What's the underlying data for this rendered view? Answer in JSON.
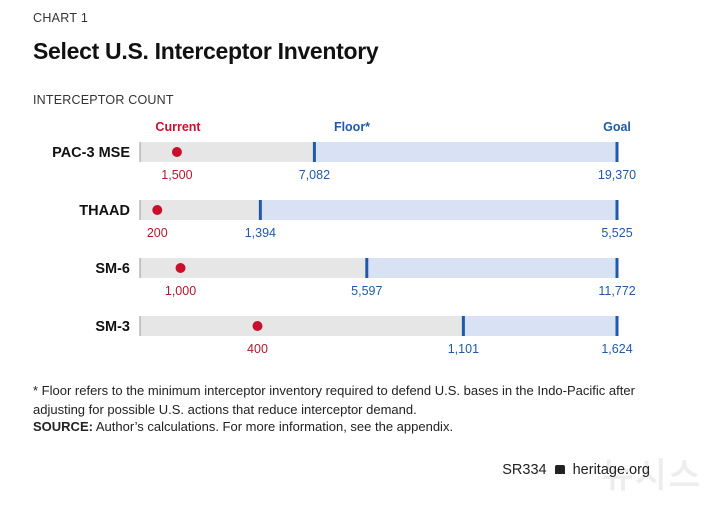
{
  "header": {
    "kicker": "CHART 1",
    "title": "Select U.S. Interceptor Inventory",
    "ylabel": "INTERCEPTOR COUNT"
  },
  "footer": {
    "footnote": "* Floor refers to the minimum interceptor inventory required to defend U.S. bases in the Indo-Pacific after adjusting for possible U.S. actions that reduce interceptor demand.",
    "source_label": "SOURCE:",
    "source_text": " Author’s calculations. For more information, see the appendix.",
    "report_id": "SR334",
    "site": "heritage.org",
    "watermark": "뉴시스"
  },
  "colors": {
    "current": "#c8102e",
    "floor_goal": "#1f5aa8",
    "bar_gray": "#e6e6e6",
    "bar_blue": "#d9e1f4",
    "current_label": "#b01a2e"
  },
  "chart_data": {
    "type": "bar",
    "legend": [
      "Current",
      "Floor*",
      "Goal"
    ],
    "categories": [
      "PAC-3 MSE",
      "THAAD",
      "SM-6",
      "SM-3"
    ],
    "series": [
      {
        "name": "Current",
        "values": [
          1500,
          200,
          1000,
          400
        ],
        "labels": [
          "1,500",
          "200",
          "1,000",
          "400"
        ]
      },
      {
        "name": "Floor*",
        "values": [
          7082,
          1394,
          5597,
          1101
        ],
        "labels": [
          "7,082",
          "1,394",
          "5,597",
          "1,101"
        ]
      },
      {
        "name": "Goal",
        "values": [
          19370,
          5525,
          11772,
          1624
        ],
        "labels": [
          "19,370",
          "5,525",
          "11,772",
          "1,624"
        ]
      }
    ]
  }
}
